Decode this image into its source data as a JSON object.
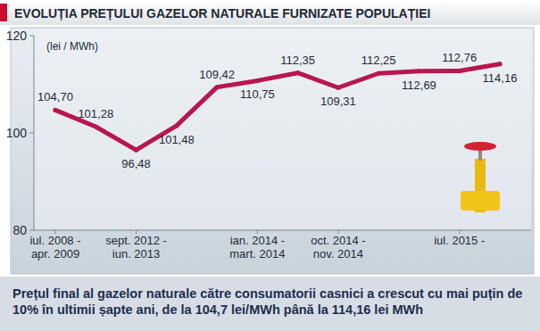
{
  "chart_data": {
    "type": "line",
    "title": "EVOLUȚIA PREȚULUI GAZELOR NATURALE FURNIZATE POPULAȚIEI",
    "y_label": "(lei / MWh)",
    "annotations": [
      "Prețul final al gazelor naturale către consumatorii casnici a crescut cu mai puțin de 10% în ultimii șapte ani, de la 104,7 lei/MWh până la 114,16 lei MWh"
    ],
    "categories": [
      "iul. 2008 - apr. 2009",
      null,
      "sept. 2012 - iun. 2013",
      null,
      null,
      "ian. 2014 - mart. 2014",
      null,
      "oct. 2014 - nov. 2014",
      null,
      null,
      "iul. 2015 -",
      null
    ],
    "values": [
      104.7,
      101.28,
      96.48,
      101.48,
      109.42,
      110.75,
      112.35,
      109.31,
      112.25,
      112.69,
      112.76,
      114.16
    ],
    "value_labels": [
      "104,70",
      "101,28",
      "96,48",
      "101,48",
      "109,42",
      "110,75",
      "112,35",
      "109,31",
      "112,25",
      "112,69",
      "112,76",
      "114,16"
    ],
    "color": "#b8174e",
    "ylim": [
      80,
      120
    ],
    "yticks": [
      80,
      100,
      120
    ],
    "grid": false,
    "data_labels": true
  }
}
